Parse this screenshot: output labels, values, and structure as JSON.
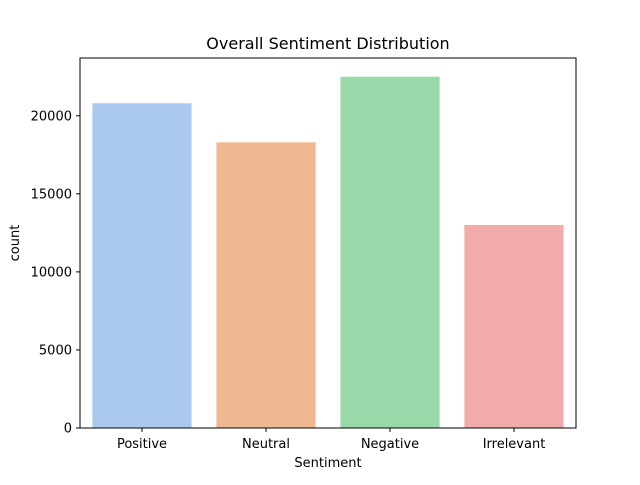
{
  "chart_data": {
    "type": "bar",
    "title": "Overall Sentiment Distribution",
    "xlabel": "Sentiment",
    "ylabel": "count",
    "categories": [
      "Positive",
      "Neutral",
      "Negative",
      "Irrelevant"
    ],
    "values": [
      20800,
      18300,
      22500,
      13000
    ],
    "colors": [
      "#abc9ee",
      "#f0b891",
      "#99d9a9",
      "#f2abab"
    ],
    "ylim": [
      0,
      23700
    ],
    "yticks": [
      0,
      5000,
      10000,
      15000,
      20000
    ],
    "ytick_labels": [
      "0",
      "5000",
      "10000",
      "15000",
      "20000"
    ],
    "grid": false,
    "legend": "none"
  }
}
